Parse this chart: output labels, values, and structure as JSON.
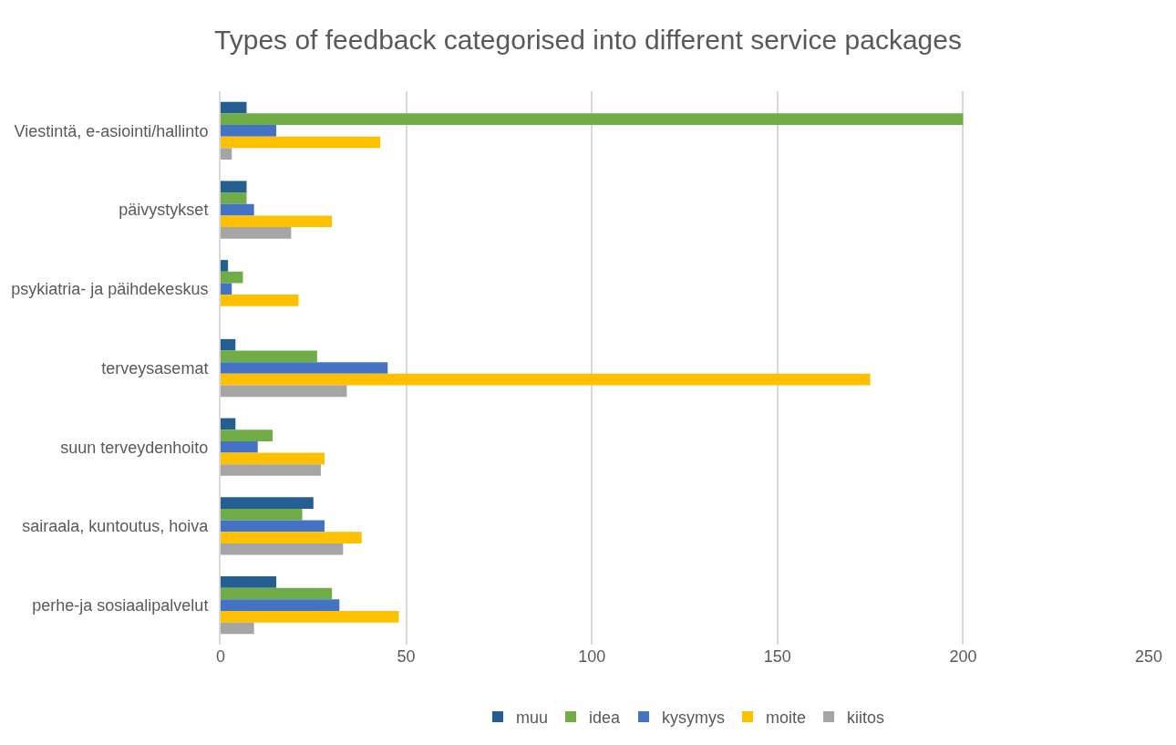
{
  "chart_data": {
    "type": "bar",
    "orientation": "horizontal",
    "title": "Types of feedback categorised into different service packages",
    "categories": [
      "Viestintä, e-asiointi/hallinto",
      "päivystykset",
      "psykiatria- ja päihdekeskus",
      "terveysasemat",
      "suun terveydenhoito",
      "sairaala, kuntoutus, hoiva",
      "perhe-ja sosiaalipalvelut"
    ],
    "series": [
      {
        "name": "muu",
        "color": "#255e91",
        "values": [
          7,
          7,
          2,
          4,
          4,
          25,
          15
        ]
      },
      {
        "name": "idea",
        "color": "#70ad47",
        "values": [
          200,
          7,
          6,
          26,
          14,
          22,
          30
        ]
      },
      {
        "name": "kysymys",
        "color": "#4472c4",
        "values": [
          15,
          9,
          3,
          45,
          10,
          28,
          32
        ]
      },
      {
        "name": "moite",
        "color": "#ffc000",
        "values": [
          43,
          30,
          21,
          175,
          28,
          38,
          48
        ]
      },
      {
        "name": "kiitos",
        "color": "#a5a5a5",
        "values": [
          3,
          19,
          null,
          34,
          27,
          33,
          9
        ]
      }
    ],
    "xlim": [
      0,
      250
    ],
    "xticks": [
      0,
      50,
      100,
      150,
      200,
      250
    ],
    "grid": "x",
    "legend": "bottom"
  }
}
